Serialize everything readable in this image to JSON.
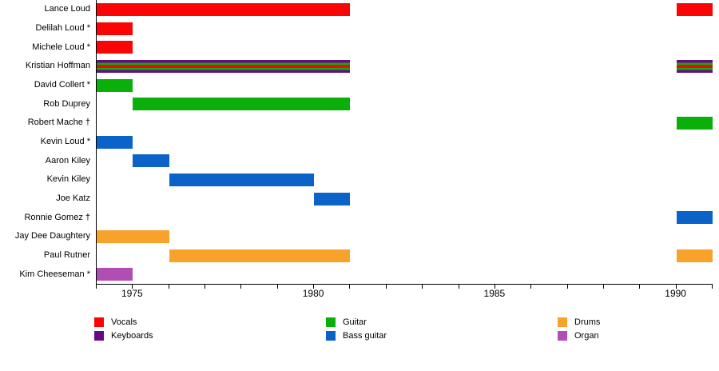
{
  "chart_data": {
    "type": "bar",
    "subtype": "horizontal-timeline-gantt",
    "title": "",
    "xlabel": "",
    "ylabel": "",
    "grid": false,
    "x_axis": {
      "min": 1974,
      "max": 1991,
      "minor_tick_step": 1,
      "major_ticks": [
        1975,
        1980,
        1985,
        1990
      ],
      "major_tick_labels": [
        "1975",
        "1980",
        "1985",
        "1990"
      ]
    },
    "role_colors": {
      "vocals": "#FA0505",
      "keyboards": "#6A0984",
      "guitar": "#0AAF0A",
      "bass": "#0B63C8",
      "drums": "#F9A22B",
      "organ": "#B14EB4"
    },
    "members": [
      {
        "name": "Lance Loud",
        "intervals": [
          {
            "start": 1974,
            "end": 1981,
            "roles": [
              "vocals"
            ]
          },
          {
            "start": 1990,
            "end": 1991,
            "roles": [
              "vocals"
            ]
          }
        ]
      },
      {
        "name": "Delilah Loud *",
        "intervals": [
          {
            "start": 1974,
            "end": 1975,
            "roles": [
              "vocals"
            ]
          }
        ]
      },
      {
        "name": "Michele Loud *",
        "intervals": [
          {
            "start": 1974,
            "end": 1975,
            "roles": [
              "vocals"
            ]
          }
        ]
      },
      {
        "name": "Kristian Hoffman",
        "intervals": [
          {
            "start": 1974,
            "end": 1981,
            "roles": [
              "keyboards",
              "guitar",
              "vocals"
            ]
          },
          {
            "start": 1990,
            "end": 1991,
            "roles": [
              "keyboards",
              "guitar",
              "vocals"
            ]
          }
        ]
      },
      {
        "name": "David Collert *",
        "intervals": [
          {
            "start": 1974,
            "end": 1975,
            "roles": [
              "guitar"
            ]
          }
        ]
      },
      {
        "name": "Rob Duprey",
        "intervals": [
          {
            "start": 1975,
            "end": 1981,
            "roles": [
              "guitar"
            ]
          }
        ]
      },
      {
        "name": "Robert Mache †",
        "intervals": [
          {
            "start": 1990,
            "end": 1991,
            "roles": [
              "guitar"
            ]
          }
        ]
      },
      {
        "name": "Kevin Loud *",
        "intervals": [
          {
            "start": 1974,
            "end": 1975,
            "roles": [
              "bass"
            ]
          }
        ]
      },
      {
        "name": "Aaron Kiley",
        "intervals": [
          {
            "start": 1975,
            "end": 1976,
            "roles": [
              "bass"
            ]
          }
        ]
      },
      {
        "name": "Kevin Kiley",
        "intervals": [
          {
            "start": 1976,
            "end": 1980,
            "roles": [
              "bass"
            ]
          }
        ]
      },
      {
        "name": "Joe Katz",
        "intervals": [
          {
            "start": 1980,
            "end": 1981,
            "roles": [
              "bass"
            ]
          }
        ]
      },
      {
        "name": "Ronnie Gomez †",
        "intervals": [
          {
            "start": 1990,
            "end": 1991,
            "roles": [
              "bass"
            ]
          }
        ]
      },
      {
        "name": "Jay Dee Daughtery",
        "intervals": [
          {
            "start": 1974,
            "end": 1976,
            "roles": [
              "drums"
            ]
          }
        ]
      },
      {
        "name": "Paul Rutner",
        "intervals": [
          {
            "start": 1976,
            "end": 1981,
            "roles": [
              "drums"
            ]
          },
          {
            "start": 1990,
            "end": 1991,
            "roles": [
              "drums"
            ]
          }
        ]
      },
      {
        "name": "Kim Cheeseman *",
        "intervals": [
          {
            "start": 1974,
            "end": 1975,
            "roles": [
              "organ"
            ]
          }
        ]
      }
    ],
    "legend": [
      {
        "label": "Vocals",
        "role": "vocals",
        "col": 0
      },
      {
        "label": "Keyboards",
        "role": "keyboards",
        "col": 0
      },
      {
        "label": "Guitar",
        "role": "guitar",
        "col": 1
      },
      {
        "label": "Bass guitar",
        "role": "bass",
        "col": 1
      },
      {
        "label": "Drums",
        "role": "drums",
        "col": 2
      },
      {
        "label": "Organ",
        "role": "organ",
        "col": 2
      }
    ]
  }
}
